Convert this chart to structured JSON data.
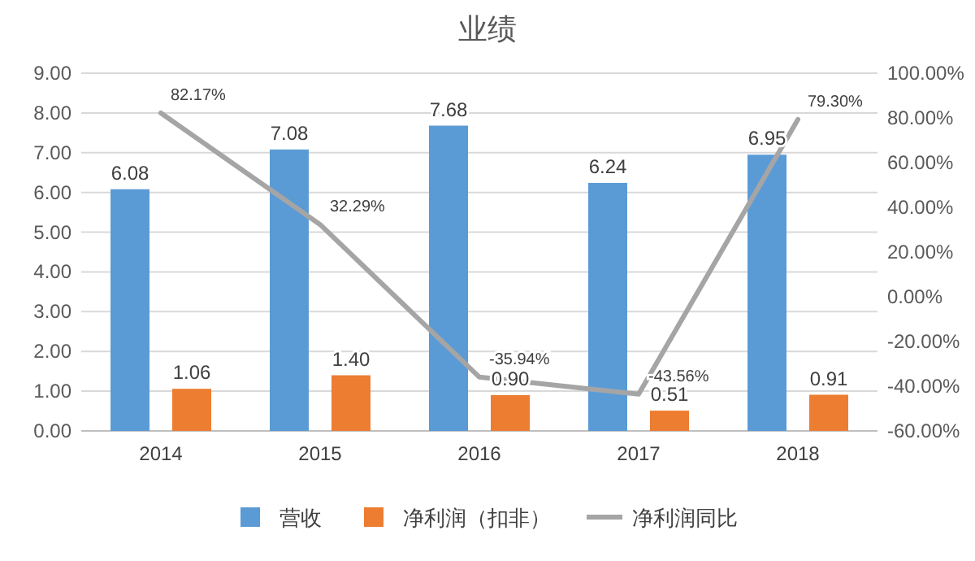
{
  "chart_data": {
    "type": "bar",
    "title": "业绩",
    "categories": [
      "2014",
      "2015",
      "2016",
      "2017",
      "2018"
    ],
    "series": [
      {
        "name": "营收",
        "color": "#5b9bd5",
        "values": [
          6.08,
          7.08,
          7.68,
          6.24,
          6.95
        ],
        "value_labels": [
          "6.08",
          "7.08",
          "7.68",
          "6.24",
          "6.95"
        ]
      },
      {
        "name": "净利润（扣非）",
        "color": "#ed7d31",
        "values": [
          1.06,
          1.4,
          0.9,
          0.51,
          0.91
        ],
        "value_labels": [
          "1.06",
          "1.40",
          "0.90",
          "0.51",
          "0.91"
        ]
      },
      {
        "name": "净利润同比",
        "type": "line",
        "axis": "y2",
        "color": "#a5a5a5",
        "values": [
          82.17,
          32.29,
          -35.94,
          -43.56,
          79.3
        ],
        "value_labels": [
          "82.17%",
          "32.29%",
          "-35.94%",
          "-43.56%",
          "79.30%"
        ]
      }
    ],
    "ylim": [
      0,
      9
    ],
    "yticks": [
      {
        "value": 0,
        "label": "0.00"
      },
      {
        "value": 1,
        "label": "1.00"
      },
      {
        "value": 2,
        "label": "2.00"
      },
      {
        "value": 3,
        "label": "3.00"
      },
      {
        "value": 4,
        "label": "4.00"
      },
      {
        "value": 5,
        "label": "5.00"
      },
      {
        "value": 6,
        "label": "6.00"
      },
      {
        "value": 7,
        "label": "7.00"
      },
      {
        "value": 8,
        "label": "8.00"
      },
      {
        "value": 9,
        "label": "9.00"
      }
    ],
    "y2lim": [
      -60,
      100
    ],
    "y2ticks": [
      {
        "value": -60,
        "label": "-60.00%"
      },
      {
        "value": -40,
        "label": "-40.00%"
      },
      {
        "value": -20,
        "label": "-20.00%"
      },
      {
        "value": 0,
        "label": "0.00%"
      },
      {
        "value": 20,
        "label": "20.00%"
      },
      {
        "value": 40,
        "label": "40.00%"
      },
      {
        "value": 60,
        "label": "60.00%"
      },
      {
        "value": 80,
        "label": "80.00%"
      },
      {
        "value": 100,
        "label": "100.00%"
      }
    ],
    "grid": "y",
    "legend": "bottom",
    "marker": "none",
    "line_style": "solid"
  }
}
